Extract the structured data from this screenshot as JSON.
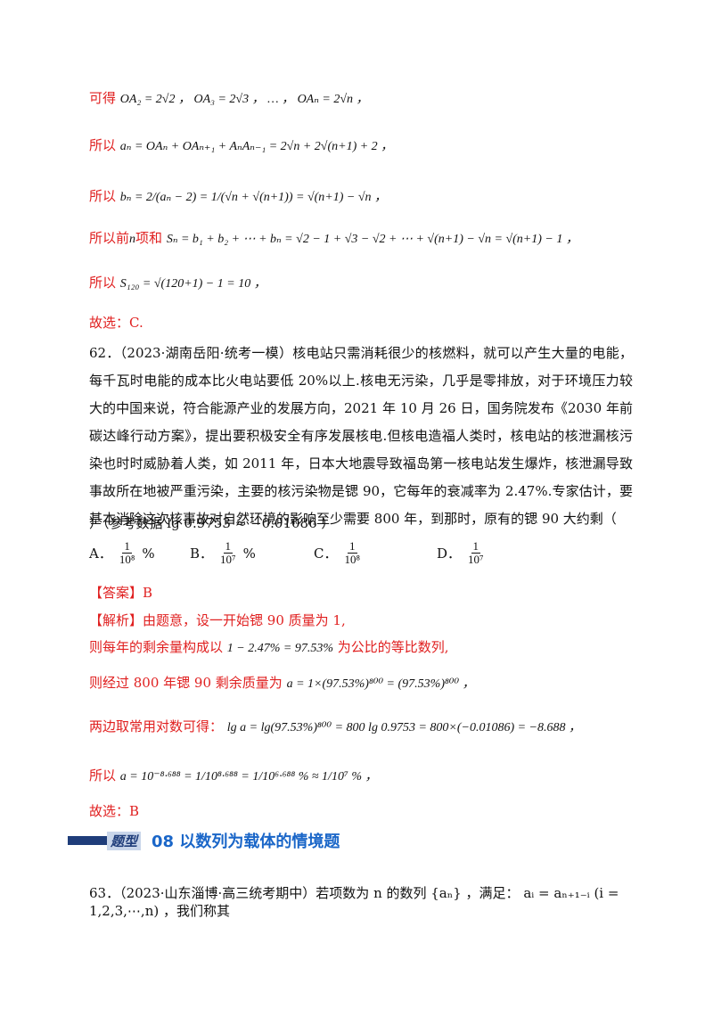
{
  "solution_top": {
    "l1_label": "可得",
    "l1_math": "OA₂ = 2√2 ，  OA₃ = 2√3 ，  … ，  OAₙ = 2√n ，",
    "l2_label": "所以",
    "l2_math": "aₙ = OAₙ + OAₙ₊₁ + AₙAₙ₋₁ = 2√n + 2√(n+1) + 2 ，",
    "l3_label": "所以",
    "l3_math": "bₙ = 2/(aₙ − 2) = 1/(√n + √(n+1)) = √(n+1) − √n ，",
    "l4_label": "所以前",
    "l4_n": "n",
    "l4_label2": "项和",
    "l4_math": "Sₙ = b₁ + b₂ + ⋯ + bₙ = √2 − 1 + √3 − √2 + ⋯ + √(n+1) − √n = √(n+1) − 1 ，",
    "l5_label": "所以",
    "l5_math": "S₁₂₀ = √(120+1) − 1 = 10 ，",
    "choice": "故选：C."
  },
  "question62": {
    "text": "62．（2023·湖南岳阳·统考一模）核电站只需消耗很少的核燃料，就可以产生大量的电能，每千瓦时电能的成本比火电站要低 20%以上.核电无污染，几乎是零排放，对于环境压力较大的中国来说，符合能源产业的发展方向，2021 年 10 月 26 日，国务院发布《2030 年前碳达峰行动方案》，提出要积极安全有序发展核电.但核电造福人类时，核电站的核泄漏核污染也时时威胁着人类，如 2011 年，日本大地震导致福岛第一核电站发生爆炸，核泄漏导致事故所在地被严重污染，主要的核污染物是锶 90，它每年的衰减率为 2.47%.专家估计，要基本消除这次核事故对自然环境的影响至少需要 800 年，到那时，原有的锶 90 大约剩（",
    "tail": "）（参考数据 lg 0.9753 ≈ −0.01086 ）",
    "options": [
      {
        "letter": "A．",
        "num": "1",
        "den": "10⁸",
        "unit": "%"
      },
      {
        "letter": "B．",
        "num": "1",
        "den": "10⁷",
        "unit": "%"
      },
      {
        "letter": "C．",
        "num": "1",
        "den": "10⁸",
        "unit": ""
      },
      {
        "letter": "D．",
        "num": "1",
        "den": "10⁷",
        "unit": ""
      }
    ]
  },
  "answer": {
    "label": "【答案】B",
    "analysis_label": "【解析】",
    "a1": "由题意，设一开始锶 90 质量为 1,",
    "a2_pre": "则每年的剩余量构成以",
    "a2_math": "1 − 2.47% = 97.53%",
    "a2_post": "为公比的等比数列,",
    "a3_pre": "则经过 800 年锶 90 剩余质量为",
    "a3_math": "a = 1×(97.53%)⁸⁰⁰ = (97.53%)⁸⁰⁰ ，",
    "a4_pre": "两边取常用对数可得：",
    "a4_math": "lg a = lg(97.53%)⁸⁰⁰ = 800 lg 0.9753 = 800×(−0.01086) = −8.688 ，",
    "a5_pre": "所以",
    "a5_math": "a = 10⁻⁸·⁶⁸⁸ = 1/10⁸·⁶⁸⁸ = 1/10⁶·⁶⁸⁸ % ≈ 1/10⁷ % ，",
    "choice": "故选：B"
  },
  "section": {
    "tag": "题型",
    "title": "08  以数列为载体的情境题"
  },
  "question63": {
    "text": "63．（2023·山东淄博·高三统考期中）若项数为 n 的数列 {aₙ} ，满足： aᵢ = aₙ₊₁₋ᵢ (i = 1,2,3,⋯,n) ，我们称其"
  }
}
